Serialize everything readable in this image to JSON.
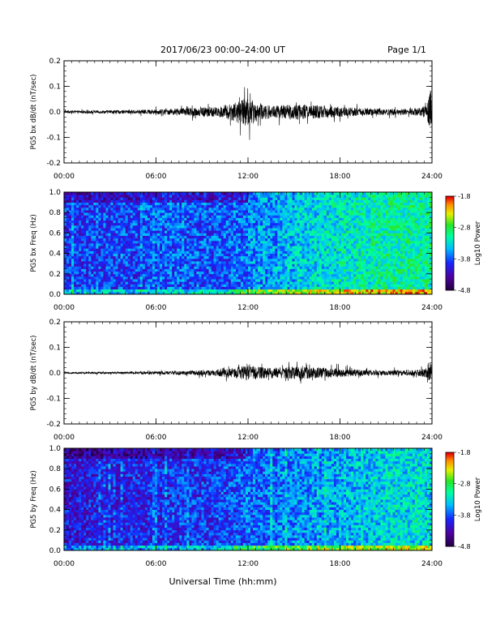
{
  "header": {
    "title": "2017/06/23  00:00–24:00 UT",
    "page": "Page 1/1"
  },
  "footer": {
    "xlabel": "Universal Time (hh:mm)"
  },
  "chart_data": [
    {
      "type": "line",
      "ylabel": "PG5 bx dB/dt (nT/sec)",
      "xlim": [
        "00:00",
        "24:00"
      ],
      "ylim": [
        -0.2,
        0.2
      ],
      "yticks": [
        "0.2",
        "0.1",
        "0.0",
        "-0.1",
        "-0.2"
      ],
      "xticks": [
        "00:00",
        "06:00",
        "12:00",
        "18:00",
        "24:00"
      ],
      "series": [
        {
          "x_hours": [
            0,
            1,
            2,
            3,
            4,
            5,
            6,
            7,
            8,
            9,
            10,
            11,
            11.5,
            12,
            12.5,
            13,
            14,
            15,
            16,
            17,
            18,
            19,
            20,
            21,
            22,
            23,
            23.7,
            23.9,
            24
          ],
          "amplitude": [
            0.005,
            0.005,
            0.006,
            0.006,
            0.007,
            0.008,
            0.01,
            0.012,
            0.015,
            0.018,
            0.02,
            0.035,
            0.045,
            0.06,
            0.04,
            0.03,
            0.025,
            0.03,
            0.028,
            0.025,
            0.02,
            0.016,
            0.014,
            0.012,
            0.012,
            0.015,
            0.03,
            0.1,
            0.02
          ]
        }
      ]
    },
    {
      "type": "heatmap",
      "ylabel": "PG5 bx Freq (Hz)",
      "xlim": [
        "00:00",
        "24:00"
      ],
      "ylim": [
        0.0,
        1.0
      ],
      "yticks": [
        "1.0",
        "0.8",
        "0.6",
        "0.4",
        "0.2",
        "0.0"
      ],
      "xticks": [
        "00:00",
        "06:00",
        "12:00",
        "18:00",
        "24:00"
      ],
      "colorbar": {
        "label": "Log10 Power",
        "ticks": [
          "-1.8",
          "-2.8",
          "-3.8",
          "-4.8"
        ],
        "range": [
          -4.8,
          -1.8
        ]
      },
      "level_by_hour": [
        -3.9,
        -3.9,
        -3.85,
        -3.85,
        -3.85,
        -3.8,
        -3.75,
        -3.75,
        -3.8,
        -3.8,
        -3.75,
        -3.7,
        -3.6,
        -3.55,
        -3.45,
        -3.35,
        -3.3,
        -3.25,
        -3.2,
        -3.15,
        -3.1,
        -3.05,
        -3.05,
        -3.05
      ]
    },
    {
      "type": "line",
      "ylabel": "PG5 by dB/dt (nT/sec)",
      "xlim": [
        "00:00",
        "24:00"
      ],
      "ylim": [
        -0.2,
        0.2
      ],
      "yticks": [
        "0.2",
        "0.1",
        "0.0",
        "-0.1",
        "-0.2"
      ],
      "xticks": [
        "00:00",
        "06:00",
        "12:00",
        "18:00",
        "24:00"
      ],
      "series": [
        {
          "x_hours": [
            0,
            1,
            2,
            3,
            4,
            5,
            6,
            7,
            8,
            9,
            10,
            11,
            11.5,
            12,
            12.5,
            13,
            14,
            15,
            16,
            17,
            18,
            19,
            20,
            21,
            22,
            23,
            23.7,
            23.9,
            24
          ],
          "amplitude": [
            0.003,
            0.003,
            0.004,
            0.004,
            0.004,
            0.005,
            0.006,
            0.007,
            0.008,
            0.01,
            0.012,
            0.02,
            0.025,
            0.03,
            0.025,
            0.022,
            0.02,
            0.025,
            0.022,
            0.02,
            0.016,
            0.013,
            0.01,
            0.01,
            0.01,
            0.012,
            0.02,
            0.04,
            0.015
          ]
        }
      ]
    },
    {
      "type": "heatmap",
      "ylabel": "PG5 by Freq (Hz)",
      "xlim": [
        "00:00",
        "24:00"
      ],
      "ylim": [
        0.0,
        1.0
      ],
      "yticks": [
        "1.0",
        "0.8",
        "0.6",
        "0.4",
        "0.2",
        "0.0"
      ],
      "xticks": [
        "00:00",
        "06:00",
        "12:00",
        "18:00",
        "24:00"
      ],
      "colorbar": {
        "label": "Log10 Power",
        "ticks": [
          "-1.8",
          "-2.8",
          "-3.8",
          "-4.8"
        ],
        "range": [
          -4.8,
          -1.8
        ]
      },
      "level_by_hour": [
        -4.1,
        -4.1,
        -4.05,
        -4.05,
        -4.0,
        -4.0,
        -3.95,
        -3.9,
        -3.9,
        -3.9,
        -3.85,
        -3.8,
        -3.75,
        -3.7,
        -3.65,
        -3.6,
        -3.55,
        -3.5,
        -3.45,
        -3.4,
        -3.35,
        -3.3,
        -3.3,
        -3.3
      ]
    }
  ]
}
